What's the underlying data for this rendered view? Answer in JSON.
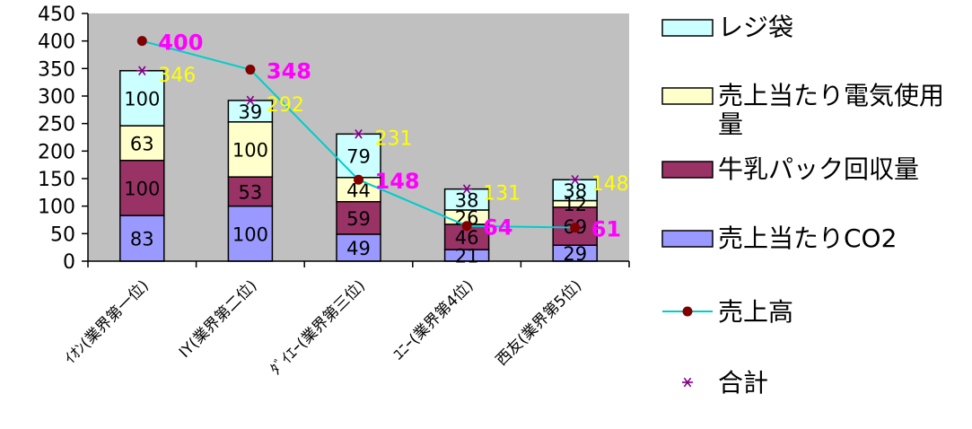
{
  "chart_data": {
    "type": "bar",
    "stacked": true,
    "categories": [
      "ｲｵﾝ(業界第一位)",
      "IY(業界第二位)",
      "ﾀﾞｲｴｰ(業界第三位)",
      "ﾕﾆｰ(業界第4位)",
      "西友(業界第5位)"
    ],
    "series": [
      {
        "name": "売上当たりCO2",
        "type": "bar",
        "color": "#9999ff",
        "values": [
          83,
          100,
          49,
          21,
          29
        ]
      },
      {
        "name": "牛乳パック回収量",
        "type": "bar",
        "color": "#993366",
        "values": [
          100,
          53,
          59,
          46,
          69
        ]
      },
      {
        "name": "売上当たり電気使用量",
        "type": "bar",
        "color": "#ffffcc",
        "values": [
          63,
          100,
          44,
          26,
          12
        ]
      },
      {
        "name": "レジ袋",
        "type": "bar",
        "color": "#ccffff",
        "values": [
          100,
          39,
          79,
          38,
          38
        ]
      },
      {
        "name": "売上高",
        "type": "line",
        "color": "#00cccc",
        "marker_color": "#800000",
        "values": [
          400,
          348,
          148,
          64,
          61
        ]
      },
      {
        "name": "合計",
        "type": "scatter",
        "color": "#800080",
        "values": [
          346,
          292,
          231,
          131,
          148
        ]
      }
    ],
    "yticks": [
      0,
      50,
      100,
      150,
      200,
      250,
      300,
      350,
      400,
      450
    ],
    "ylim": [
      0,
      450
    ],
    "grid": false,
    "plot_background": "#c0c0c0",
    "legend_position": "right",
    "title": "",
    "xlabel": "",
    "ylabel": ""
  }
}
